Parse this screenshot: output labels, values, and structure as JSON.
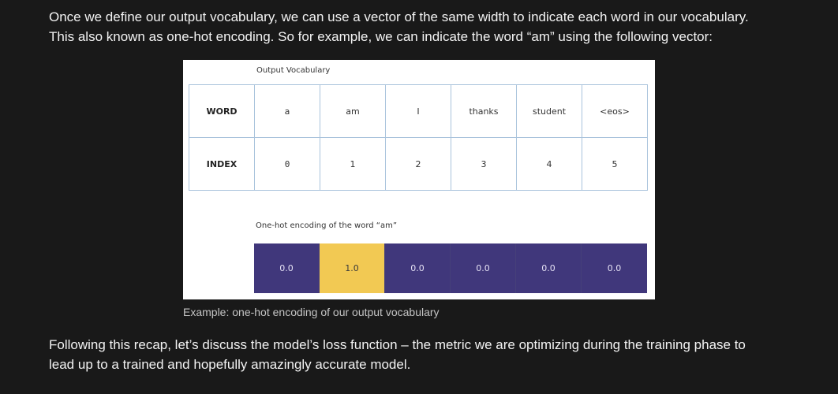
{
  "paragraphs": {
    "top_line1": "Once we define our output vocabulary, we can use a vector of the same width to indicate each word in our vocabulary.",
    "top_line2": "This also known as one-hot encoding. So for example, we can indicate the word “am” using the following vector:",
    "bottom_line1": "Following this recap, let’s discuss the model’s loss function – the metric we are optimizing during the training phase to",
    "bottom_line2": "lead up to a trained and hopefully amazingly accurate model."
  },
  "figure": {
    "vocab_label": "Output Vocabulary",
    "word_header": "WORD",
    "index_header": "INDEX",
    "words": [
      "a",
      "am",
      "I",
      "thanks",
      "student",
      "<eos>"
    ],
    "indices": [
      "0",
      "1",
      "2",
      "3",
      "4",
      "5"
    ],
    "onehot_label": "One-hot encoding of the word “am”",
    "encoding": [
      "0.0",
      "1.0",
      "0.0",
      "0.0",
      "0.0",
      "0.0"
    ],
    "colors": {
      "zero_cell": "#40377b",
      "one_cell": "#f2c953",
      "zero_text": "#e6e2f5",
      "one_text": "#3a3a3a"
    }
  },
  "caption": "Example: one-hot encoding of our output vocabulary"
}
